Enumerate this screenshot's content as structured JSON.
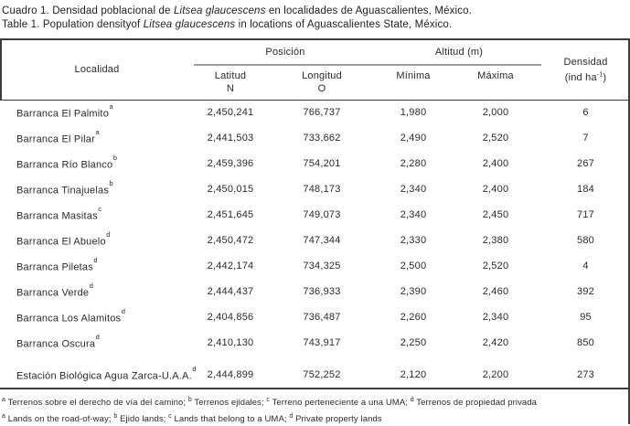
{
  "title": {
    "line1_prefix": "Cuadro 1. Densidad poblacional de ",
    "line1_species": "Litsea glaucescens",
    "line1_suffix": " en localidades de Aguascalientes, México.",
    "line2_prefix": "Table 1. Population densityof ",
    "line2_species": "Litsea glaucescens",
    "line2_suffix": " in locations of Aguascalientes State, México."
  },
  "table": {
    "headers": {
      "localidad": "Localidad",
      "posicion": "Posición",
      "altitud": "Altitud (m)",
      "latitud_line1": "Latitud",
      "latitud_line2": "N",
      "longitud_line1": "Longitud",
      "longitud_line2": "O",
      "minima": "Mínima",
      "maxima": "Máxima",
      "densidad_line1": "Densidad",
      "densidad_unit_prefix": "(ind ha",
      "densidad_unit_sup": "-1",
      "densidad_unit_suffix": ")"
    },
    "rows": [
      {
        "name": "Barranca El Palmito",
        "note": "a",
        "latitud": "2,450,241",
        "longitud": "766,737",
        "minima": "1,980",
        "maxima": "2,000",
        "densidad": "6",
        "spaced": false
      },
      {
        "name": "Barranca El Pilar",
        "note": "a",
        "latitud": "2,441,503",
        "longitud": "733,662",
        "minima": "2,490",
        "maxima": "2,520",
        "densidad": "7",
        "spaced": false
      },
      {
        "name": "Barranca Río Blanco",
        "note": "b",
        "latitud": "2,459,396",
        "longitud": "754,201",
        "minima": "2,280",
        "maxima": "2,400",
        "densidad": "267",
        "spaced": false
      },
      {
        "name": "Barranca Tinajuelas",
        "note": "b",
        "latitud": "2,450,015",
        "longitud": "748,173",
        "minima": "2,340",
        "maxima": "2,400",
        "densidad": "184",
        "spaced": false
      },
      {
        "name": "Barranca Masitas",
        "note": "c",
        "latitud": "2,451,645",
        "longitud": "749,073",
        "minima": "2,340",
        "maxima": "2,450",
        "densidad": "717",
        "spaced": false
      },
      {
        "name": "Barranca El Abuelo",
        "note": "d",
        "latitud": "2,450,472",
        "longitud": "747,344",
        "minima": "2,330",
        "maxima": "2,380",
        "densidad": "580",
        "spaced": false
      },
      {
        "name": "Barranca Piletas",
        "note": "d",
        "latitud": "2,442,174",
        "longitud": "734,325",
        "minima": "2,500",
        "maxima": "2,520",
        "densidad": "4",
        "spaced": false
      },
      {
        "name": "Barranca Verde",
        "note": "d",
        "latitud": "2,444,437",
        "longitud": "736,933",
        "minima": "2,390",
        "maxima": "2,460",
        "densidad": "392",
        "spaced": false
      },
      {
        "name": "Barranca Los Alamitos",
        "note": "d",
        "latitud": "2,404,856",
        "longitud": "736,487",
        "minima": "2,260",
        "maxima": "2,340",
        "densidad": "95",
        "spaced": false
      },
      {
        "name": "Barranca Oscura",
        "note": "d",
        "latitud": "2,410,130",
        "longitud": "743,917",
        "minima": "2,250",
        "maxima": "2,420",
        "densidad": "850",
        "spaced": false
      },
      {
        "name": "Estación Biológica Agua Zarca-U.A.A.",
        "note": "d",
        "latitud": "2,444,899",
        "longitud": "752,252",
        "minima": "2,120",
        "maxima": "2,200",
        "densidad": "273",
        "spaced": true
      }
    ]
  },
  "footnotes": [
    {
      "segments": [
        {
          "sup": "a",
          "text": " Terrenos sobre el derecho de vía del camino; "
        },
        {
          "sup": "b",
          "text": " Terrenos ejidales; "
        },
        {
          "sup": "c",
          "text": " Terreno perteneciente a una UMA; "
        },
        {
          "sup": "d",
          "text": " Terrenos de propiedad privada"
        }
      ]
    },
    {
      "segments": [
        {
          "sup": "a",
          "text": " Lands on the road-of-way; "
        },
        {
          "sup": "b",
          "text": " Ejido lands; "
        },
        {
          "sup": "c",
          "text": " Lands that belong to a UMA; "
        },
        {
          "sup": "d",
          "text": " Private property lands"
        }
      ]
    }
  ]
}
